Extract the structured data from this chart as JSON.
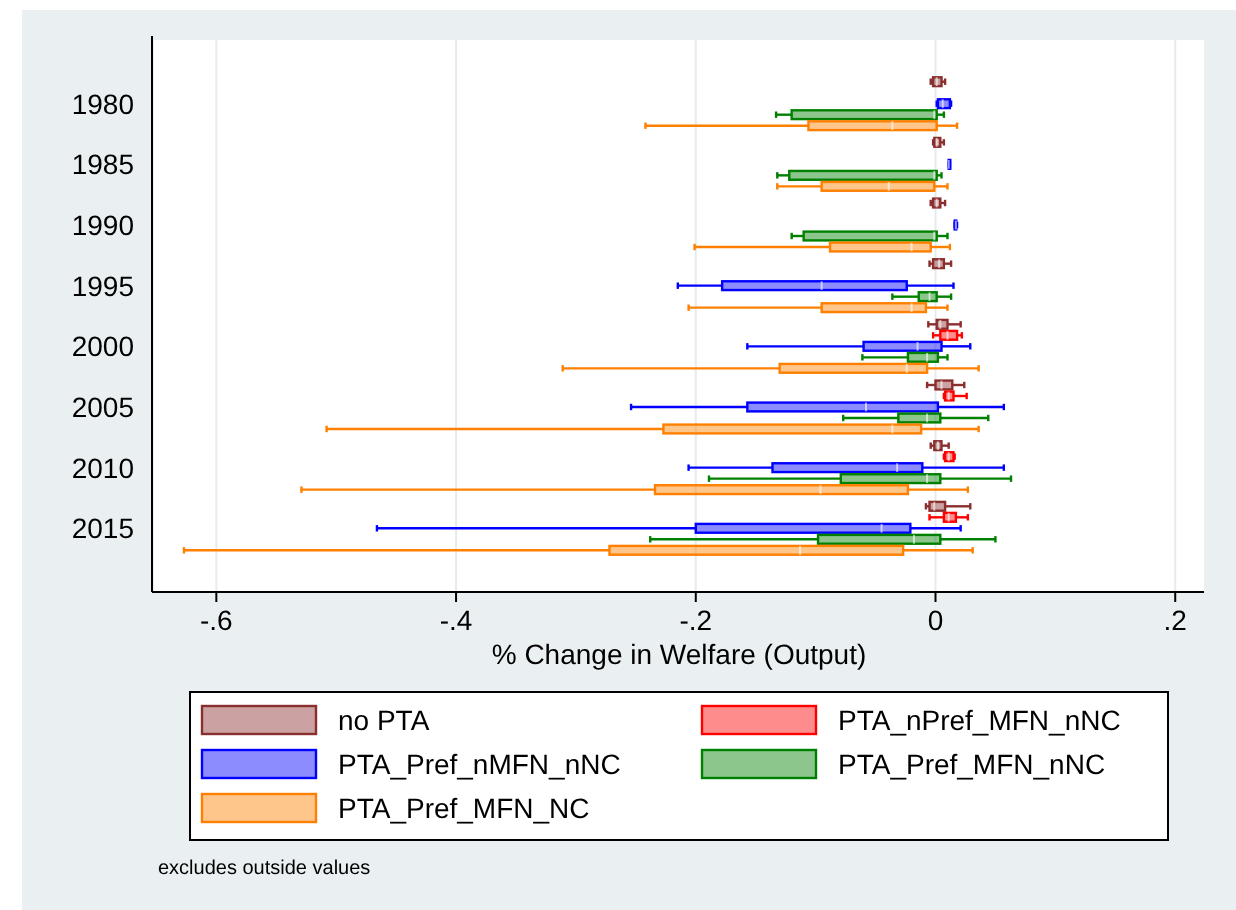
{
  "chart_data": {
    "type": "box",
    "orientation": "horizontal",
    "xlabel": "% Change in Welfare (Output)",
    "categories": [
      "1980",
      "1985",
      "1990",
      "1995",
      "2000",
      "2005",
      "2010",
      "2015"
    ],
    "xlim": [
      -0.652,
      0.224
    ],
    "xticks": [
      {
        "value": -0.6,
        "label": "-.6"
      },
      {
        "value": -0.4,
        "label": "-.4"
      },
      {
        "value": -0.2,
        "label": "-.2"
      },
      0,
      {
        "value": 0.2,
        "label": ".2"
      }
    ],
    "grid": "x",
    "legend": "bottom",
    "annotations": [
      "excludes outside values"
    ],
    "series": [
      {
        "name": "no PTA",
        "color": "#8b2e2e",
        "boxes": [
          {
            "low": -0.004,
            "q1": -0.002,
            "median": 0.001,
            "q3": 0.005,
            "high": 0.008
          },
          {
            "low": -0.002,
            "q1": -0.001,
            "median": 0.001,
            "q3": 0.004,
            "high": 0.007
          },
          {
            "low": -0.004,
            "q1": -0.002,
            "median": 0.001,
            "q3": 0.004,
            "high": 0.008
          },
          {
            "low": -0.005,
            "q1": -0.002,
            "median": 0.003,
            "q3": 0.007,
            "high": 0.013
          },
          {
            "low": -0.006,
            "q1": 0.001,
            "median": 0.004,
            "q3": 0.01,
            "high": 0.021
          },
          {
            "low": -0.007,
            "q1": 0,
            "median": 0.005,
            "q3": 0.014,
            "high": 0.024
          },
          {
            "low": -0.004,
            "q1": -0.001,
            "median": 0.002,
            "q3": 0.005,
            "high": 0.011
          },
          {
            "low": -0.008,
            "q1": -0.005,
            "median": -0.001,
            "q3": 0.008,
            "high": 0.029
          }
        ]
      },
      {
        "name": "PTA_nPref_MFN_nNC",
        "color": "#ff0000",
        "boxes": [
          null,
          null,
          null,
          null,
          {
            "low": -0.002,
            "q1": 0.004,
            "median": 0.01,
            "q3": 0.018,
            "high": 0.022
          },
          {
            "low": 0.007,
            "q1": 0.008,
            "median": 0.011,
            "q3": 0.015,
            "high": 0.026
          },
          {
            "low": 0.007,
            "q1": 0.008,
            "median": 0.011,
            "q3": 0.015,
            "high": 0.016
          },
          {
            "low": -0.005,
            "q1": 0.007,
            "median": 0.011,
            "q3": 0.017,
            "high": 0.027
          }
        ]
      },
      {
        "name": "PTA_Pref_nMFN_nNC",
        "color": "#0000ff",
        "boxes": [
          {
            "low": 0.001,
            "q1": 0.002,
            "median": 0.006,
            "q3": 0.012,
            "high": 0.013
          },
          {
            "low": 0.011,
            "q1": 0.011,
            "median": 0.011,
            "q3": 0.012,
            "high": 0.012
          },
          {
            "low": 0.016,
            "q1": 0.016,
            "median": 0.017,
            "q3": 0.017,
            "high": 0.018
          },
          {
            "low": -0.215,
            "q1": -0.178,
            "median": -0.095,
            "q3": -0.024,
            "high": 0.015
          },
          {
            "low": -0.157,
            "q1": -0.06,
            "median": -0.015,
            "q3": 0.005,
            "high": 0.029
          },
          {
            "low": -0.254,
            "q1": -0.157,
            "median": -0.058,
            "q3": 0.002,
            "high": 0.057
          },
          {
            "low": -0.206,
            "q1": -0.136,
            "median": -0.032,
            "q3": -0.011,
            "high": 0.057
          },
          {
            "low": -0.466,
            "q1": -0.2,
            "median": -0.045,
            "q3": -0.021,
            "high": 0.021
          }
        ]
      },
      {
        "name": "PTA_Pref_MFN_nNC",
        "color": "#008000",
        "boxes": [
          {
            "low": -0.133,
            "q1": -0.12,
            "median": -0.001,
            "q3": 0.001,
            "high": 0.007
          },
          {
            "low": -0.132,
            "q1": -0.122,
            "median": -0.001,
            "q3": 0.001,
            "high": 0.005
          },
          {
            "low": -0.12,
            "q1": -0.11,
            "median": -0.001,
            "q3": 0.001,
            "high": 0.01
          },
          {
            "low": -0.036,
            "q1": -0.014,
            "median": -0.005,
            "q3": 0.001,
            "high": 0.013
          },
          {
            "low": -0.061,
            "q1": -0.023,
            "median": -0.007,
            "q3": 0.002,
            "high": 0.01
          },
          {
            "low": -0.077,
            "q1": -0.031,
            "median": -0.007,
            "q3": 0.004,
            "high": 0.044
          },
          {
            "low": -0.189,
            "q1": -0.079,
            "median": -0.007,
            "q3": 0.004,
            "high": 0.063
          },
          {
            "low": -0.238,
            "q1": -0.098,
            "median": -0.018,
            "q3": 0.004,
            "high": 0.05
          }
        ]
      },
      {
        "name": "PTA_Pref_MFN_NC",
        "color": "#ff8000",
        "boxes": [
          {
            "low": -0.242,
            "q1": -0.106,
            "median": -0.036,
            "q3": 0.001,
            "high": 0.018
          },
          {
            "low": -0.132,
            "q1": -0.095,
            "median": -0.039,
            "q3": -0.001,
            "high": 0.01
          },
          {
            "low": -0.201,
            "q1": -0.088,
            "median": -0.02,
            "q3": -0.004,
            "high": 0.012
          },
          {
            "low": -0.206,
            "q1": -0.095,
            "median": -0.02,
            "q3": -0.008,
            "high": 0.01
          },
          {
            "low": -0.311,
            "q1": -0.13,
            "median": -0.024,
            "q3": -0.007,
            "high": 0.036
          },
          {
            "low": -0.508,
            "q1": -0.227,
            "median": -0.036,
            "q3": -0.012,
            "high": 0.036
          },
          {
            "low": -0.529,
            "q1": -0.234,
            "median": -0.096,
            "q3": -0.023,
            "high": 0.027
          },
          {
            "low": -0.627,
            "q1": -0.272,
            "median": -0.113,
            "q3": -0.027,
            "high": 0.031
          }
        ]
      }
    ]
  }
}
